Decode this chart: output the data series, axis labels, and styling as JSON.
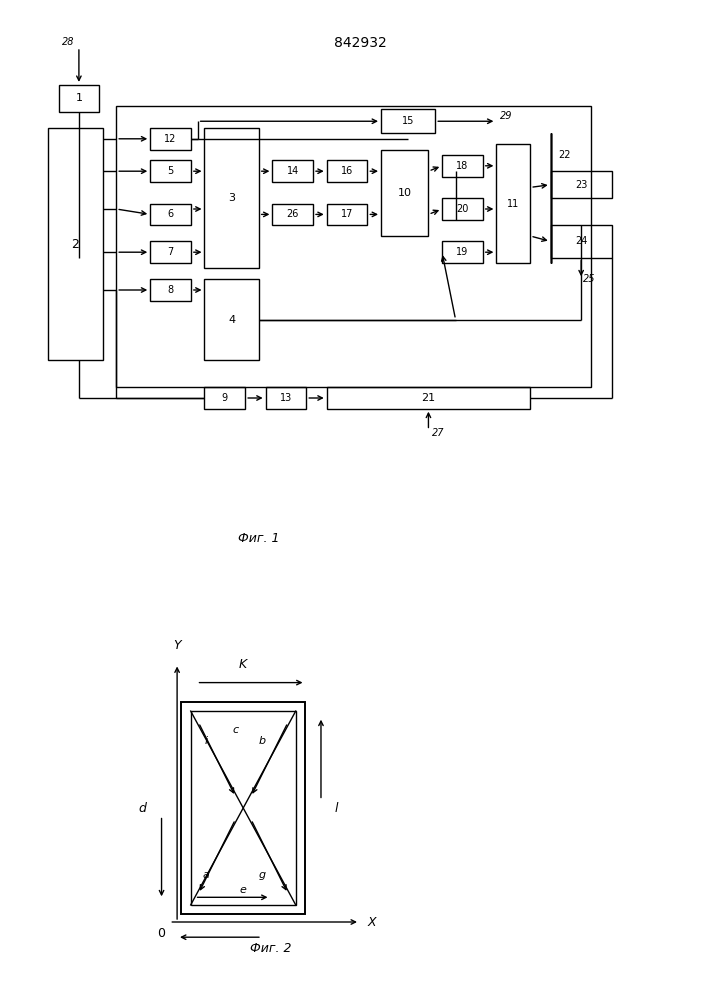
{
  "title": "842932",
  "fig1_caption": "Фиг. 1",
  "fig2_caption": "Фиг. 2",
  "bg_color": "#ffffff",
  "lw": 1.0
}
